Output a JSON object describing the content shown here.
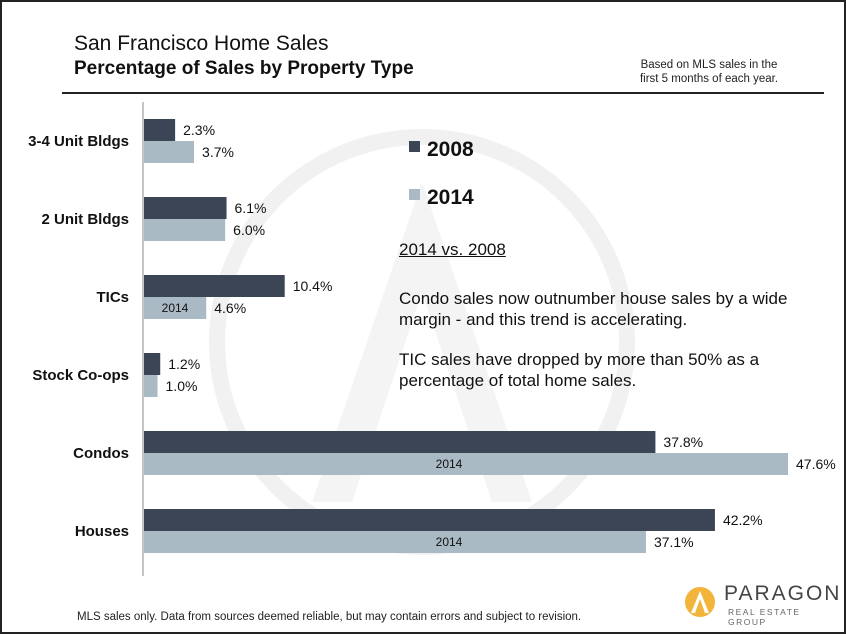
{
  "header": {
    "title": "San Francisco Home Sales",
    "subtitle": "Percentage of Sales by Property Type",
    "note_line1": "Based on MLS sales in the",
    "note_line2": "first 5 months of each year."
  },
  "annotations": {
    "heading": "2014 vs. 2008",
    "para1": "Condo sales now outnumber house sales by a wide margin - and this trend is accelerating.",
    "para2": "TIC sales have dropped by more than 50% as a percentage of total home sales."
  },
  "footer": {
    "disclaimer": "MLS sales only. Data from sources deemed reliable, but may contain errors and subject to revision."
  },
  "logo": {
    "name": "PARAGON",
    "tagline": "REAL ESTATE GROUP"
  },
  "colors": {
    "series_2008": "#3b4556",
    "series_2014": "#a9bac4"
  },
  "chart_data": {
    "type": "bar",
    "orientation": "horizontal",
    "title": "San Francisco Home Sales",
    "subtitle": "Percentage of Sales by Property Type",
    "categories": [
      "3-4 Unit Bldgs",
      "2 Unit Bldgs",
      "TICs",
      "Stock Co-ops",
      "Condos",
      "Houses"
    ],
    "series": [
      {
        "name": "2008",
        "values": [
          2.3,
          6.1,
          10.4,
          1.2,
          37.8,
          42.2
        ],
        "labels": [
          "2.3%",
          "6.1%",
          "10.4%",
          "1.2%",
          "37.8%",
          "42.2%"
        ]
      },
      {
        "name": "2014",
        "values": [
          3.7,
          6.0,
          4.6,
          1.0,
          47.6,
          37.1
        ],
        "labels": [
          "3.7%",
          "6.0%",
          "4.6%",
          "1.0%",
          "47.6%",
          "37.1%"
        ]
      }
    ],
    "inbar_label": "2014",
    "inbar_categories": [
      "TICs",
      "Condos",
      "Houses"
    ],
    "xlim": [
      0,
      50
    ],
    "legend_position": "top-right",
    "grid": false
  }
}
